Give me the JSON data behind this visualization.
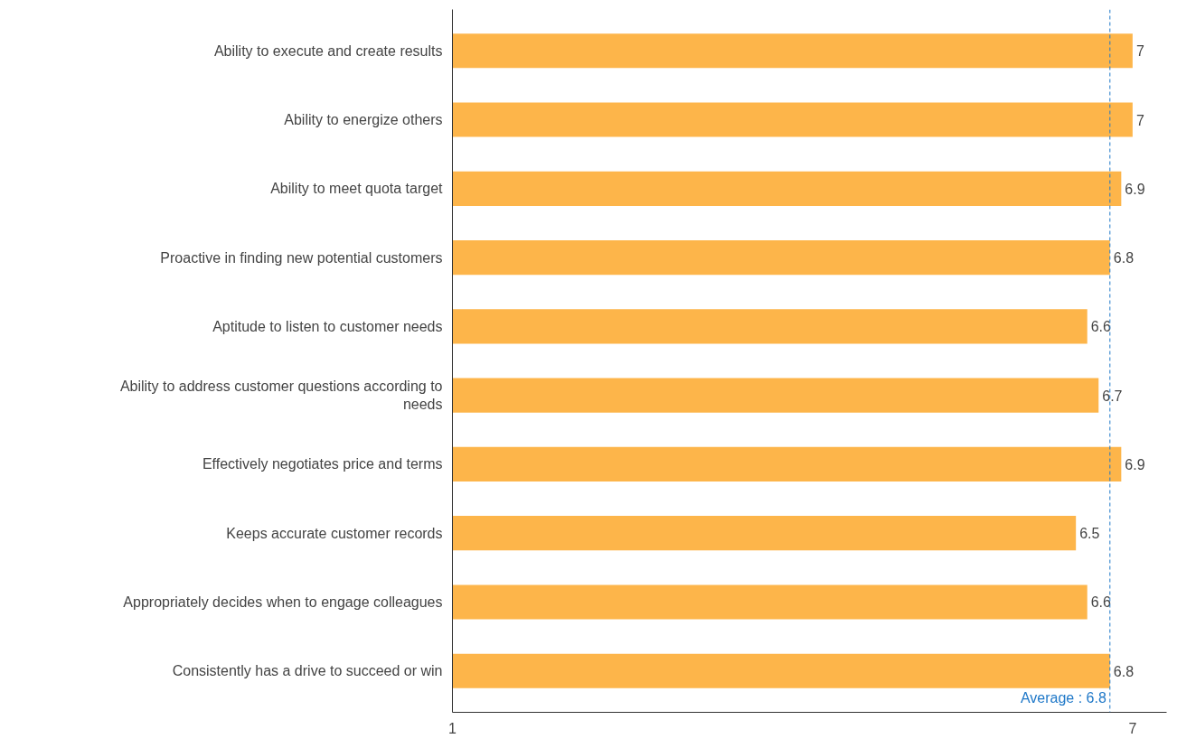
{
  "chart_data": {
    "type": "bar",
    "orientation": "horizontal",
    "categories": [
      "Ability to execute and create results",
      "Ability to energize others",
      "Ability to meet quota target",
      "Proactive in finding new potential customers",
      "Aptitude to listen to customer needs",
      "Ability to address customer questions according to needs",
      "Effectively negotiates price and terms",
      "Keeps accurate customer records",
      "Appropriately decides when to engage colleagues",
      "Consistently has a drive to succeed or win"
    ],
    "values": [
      7,
      7,
      6.9,
      6.8,
      6.6,
      6.7,
      6.9,
      6.5,
      6.6,
      6.8
    ],
    "color": "#fdb54a",
    "xlim": [
      1,
      7.3
    ],
    "xticks": [
      1,
      7
    ],
    "grid": false,
    "data_labels": true,
    "ref_lines": [
      {
        "axis": "x",
        "value": 6.8,
        "label": "Average : 6.8",
        "color": "#1f78c8",
        "line_style": "dashed"
      }
    ]
  }
}
